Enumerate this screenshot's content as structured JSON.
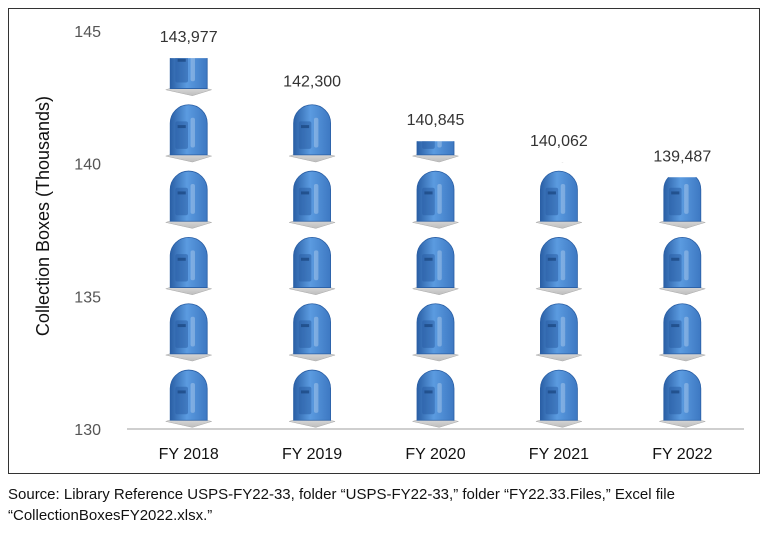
{
  "chart_data": {
    "type": "bar",
    "title": "",
    "xlabel": "",
    "ylabel": "Collection Boxes (Thousands)",
    "categories": [
      "FY 2018",
      "FY 2019",
      "FY 2020",
      "FY 2021",
      "FY 2022"
    ],
    "values": [
      143.977,
      142.3,
      140.845,
      140.062,
      139.487
    ],
    "data_labels": [
      "143,977",
      "142,300",
      "140,845",
      "140,062",
      "139,487"
    ],
    "ylim": [
      130,
      145
    ],
    "yticks": [
      "130",
      "135",
      "140",
      "145"
    ],
    "grid": false,
    "legend": "none",
    "bar_style": "stacked mailbox pictograms",
    "colors": {
      "mailbox": "#4a88d0",
      "mailbox_dark": "#2a5fa5",
      "axis": "#bfbfbf"
    },
    "icon": "mailbox-icon"
  },
  "source_note": {
    "line1": "Source: Library Reference USPS-FY22-33, folder “USPS-FY22-33,” folder “FY22.33.Files,” Excel file",
    "line2": "“CollectionBoxesFY2022.xlsx.”"
  }
}
